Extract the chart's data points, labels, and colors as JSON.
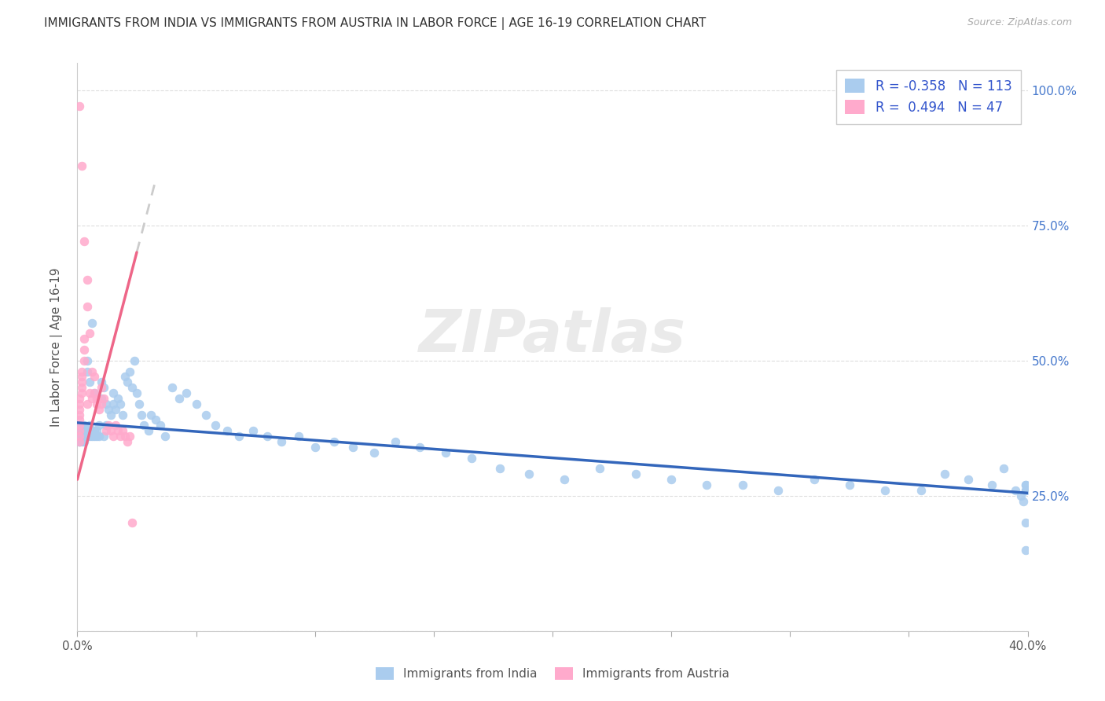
{
  "title": "IMMIGRANTS FROM INDIA VS IMMIGRANTS FROM AUSTRIA IN LABOR FORCE | AGE 16-19 CORRELATION CHART",
  "source": "Source: ZipAtlas.com",
  "ylabel": "In Labor Force | Age 16-19",
  "india_R": -0.358,
  "india_N": 113,
  "austria_R": 0.494,
  "austria_N": 47,
  "india_dot_color": "#aaccee",
  "india_line_color": "#3366bb",
  "austria_dot_color": "#ffaacc",
  "austria_line_color": "#ee6688",
  "austria_dash_color": "#ccaabb",
  "right_tick_color": "#4477cc",
  "watermark_text": "ZIPatlas",
  "xlim": [
    0.0,
    0.4
  ],
  "ylim": [
    0.0,
    1.05
  ],
  "background_color": "#ffffff",
  "grid_color": "#dddddd",
  "india_x": [
    0.001,
    0.001,
    0.001,
    0.001,
    0.001,
    0.001,
    0.001,
    0.001,
    0.002,
    0.002,
    0.002,
    0.002,
    0.002,
    0.002,
    0.002,
    0.003,
    0.003,
    0.003,
    0.003,
    0.003,
    0.003,
    0.004,
    0.004,
    0.004,
    0.004,
    0.005,
    0.005,
    0.005,
    0.005,
    0.006,
    0.006,
    0.006,
    0.007,
    0.007,
    0.007,
    0.008,
    0.008,
    0.009,
    0.009,
    0.01,
    0.01,
    0.011,
    0.011,
    0.012,
    0.012,
    0.013,
    0.014,
    0.015,
    0.015,
    0.016,
    0.017,
    0.018,
    0.019,
    0.02,
    0.021,
    0.022,
    0.023,
    0.024,
    0.025,
    0.026,
    0.027,
    0.028,
    0.03,
    0.031,
    0.033,
    0.035,
    0.037,
    0.04,
    0.043,
    0.046,
    0.05,
    0.054,
    0.058,
    0.063,
    0.068,
    0.074,
    0.08,
    0.086,
    0.093,
    0.1,
    0.108,
    0.116,
    0.125,
    0.134,
    0.144,
    0.155,
    0.166,
    0.178,
    0.19,
    0.205,
    0.22,
    0.235,
    0.25,
    0.265,
    0.28,
    0.295,
    0.31,
    0.325,
    0.34,
    0.355,
    0.365,
    0.375,
    0.385,
    0.39,
    0.395,
    0.397,
    0.398,
    0.399,
    0.399,
    0.399,
    0.399,
    0.399,
    0.399
  ],
  "india_y": [
    0.35,
    0.36,
    0.37,
    0.36,
    0.35,
    0.37,
    0.36,
    0.38,
    0.36,
    0.37,
    0.35,
    0.36,
    0.38,
    0.36,
    0.37,
    0.36,
    0.37,
    0.38,
    0.36,
    0.37,
    0.35,
    0.5,
    0.48,
    0.36,
    0.37,
    0.46,
    0.36,
    0.37,
    0.38,
    0.36,
    0.57,
    0.37,
    0.36,
    0.44,
    0.37,
    0.36,
    0.37,
    0.36,
    0.38,
    0.43,
    0.46,
    0.36,
    0.45,
    0.38,
    0.42,
    0.41,
    0.4,
    0.42,
    0.44,
    0.41,
    0.43,
    0.42,
    0.4,
    0.47,
    0.46,
    0.48,
    0.45,
    0.5,
    0.44,
    0.42,
    0.4,
    0.38,
    0.37,
    0.4,
    0.39,
    0.38,
    0.36,
    0.45,
    0.43,
    0.44,
    0.42,
    0.4,
    0.38,
    0.37,
    0.36,
    0.37,
    0.36,
    0.35,
    0.36,
    0.34,
    0.35,
    0.34,
    0.33,
    0.35,
    0.34,
    0.33,
    0.32,
    0.3,
    0.29,
    0.28,
    0.3,
    0.29,
    0.28,
    0.27,
    0.27,
    0.26,
    0.28,
    0.27,
    0.26,
    0.26,
    0.29,
    0.28,
    0.27,
    0.3,
    0.26,
    0.25,
    0.24,
    0.27,
    0.2,
    0.26,
    0.15,
    0.26,
    0.27
  ],
  "austria_x": [
    0.001,
    0.001,
    0.001,
    0.001,
    0.001,
    0.001,
    0.001,
    0.001,
    0.001,
    0.001,
    0.002,
    0.002,
    0.002,
    0.002,
    0.002,
    0.002,
    0.003,
    0.003,
    0.003,
    0.003,
    0.004,
    0.004,
    0.004,
    0.005,
    0.005,
    0.006,
    0.006,
    0.007,
    0.007,
    0.008,
    0.008,
    0.009,
    0.01,
    0.01,
    0.011,
    0.012,
    0.013,
    0.014,
    0.015,
    0.016,
    0.017,
    0.018,
    0.019,
    0.02,
    0.021,
    0.022,
    0.023
  ],
  "austria_y": [
    0.97,
    0.35,
    0.37,
    0.36,
    0.38,
    0.39,
    0.4,
    0.41,
    0.42,
    0.43,
    0.86,
    0.44,
    0.45,
    0.46,
    0.47,
    0.48,
    0.72,
    0.5,
    0.52,
    0.54,
    0.6,
    0.65,
    0.42,
    0.55,
    0.44,
    0.48,
    0.43,
    0.47,
    0.44,
    0.43,
    0.42,
    0.41,
    0.42,
    0.45,
    0.43,
    0.37,
    0.38,
    0.37,
    0.36,
    0.38,
    0.37,
    0.36,
    0.37,
    0.36,
    0.35,
    0.36,
    0.2
  ]
}
